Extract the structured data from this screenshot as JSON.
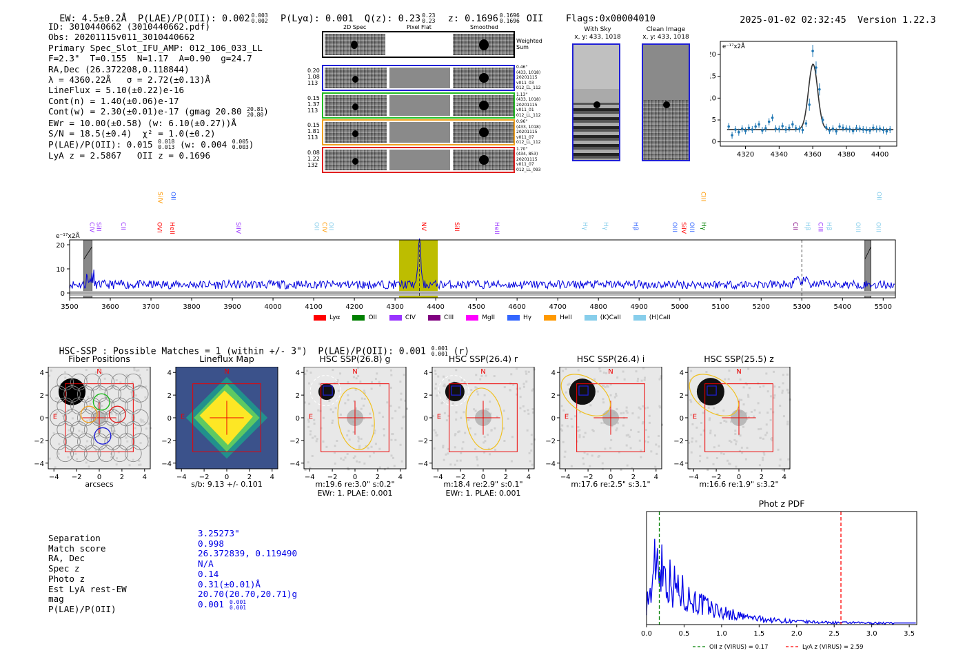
{
  "header": {
    "summary": "EW: 4.5±0.2Å  P(LAE)/P(OII): 0.002",
    "summary_sup": "0.003",
    "summary_sub": "0.002",
    "plya": "P(Lyα): 0.001",
    "qz": "Q(z): 0.23",
    "qz_sup": "0.23",
    "qz_sub": "0.23",
    "z": "z: 0.1696",
    "z_sup": "0.1696",
    "z_sub": "0.1696",
    "z_line": "OII",
    "flags": "Flags:0x00004010",
    "timestamp": "2025-01-02 02:32:45",
    "version": "Version 1.22.3"
  },
  "info": {
    "id": "ID: 3010440662 (3010440662.pdf)",
    "obs": "Obs: 20201115v011_3010440662",
    "primary": "Primary Spec_Slot_IFU_AMP: 012_106_033_LL",
    "fiber": "F=2.3\"  T=0.155  N=1.17  A=0.90  g=24.7",
    "radec": "RA,Dec (26.372208,0.118844)",
    "lambda": "λ = 4360.22Å   σ = 2.72(±0.13)Å",
    "lineflux": "LineFlux = 5.10(±0.22)e-16",
    "contn": "Cont(n) = 1.40(±0.06)e-17",
    "contw": "Cont(w) = 2.30(±0.01)e-17 (gmag 20.80",
    "contw_sup": "20.81",
    "contw_sub": "20.80",
    "contw_end": ")",
    "ewr": "EWr = 10.00(±0.58) (w: 6.10(±0.27))Å",
    "sn": "S/N = 18.5(±0.4)  χ² = 1.0(±0.2)",
    "plae": "P(LAE)/P(OII): 0.015",
    "plae_sup": "0.018",
    "plae_sub": "0.013",
    "plae_w": "(w: 0.004",
    "plae_w_sup": "0.005",
    "plae_w_sub": "0.003",
    "plae_end": ")",
    "lyaz": "LyA z = 2.5867   OII z = 0.1696"
  },
  "cutouts": {
    "col_2d": "2D Spec",
    "col_flat": "Pixel Flat",
    "col_smooth": "Smoothed",
    "weighted_sum": "Weighted Sum",
    "rows": [
      {
        "color": "#1f1fd6",
        "v1": "0.20",
        "v2": "1.08",
        "v3": "113",
        "r1": "0.46\"",
        "r2": "(433, 1018)",
        "r3": "20201115",
        "r4": "v011_03",
        "r5": "012_LL_112"
      },
      {
        "color": "#22bb22",
        "v1": "0.15",
        "v2": "1.37",
        "v3": "113",
        "r1": "1.13\"",
        "r2": "(433, 1018)",
        "r3": "20201115",
        "r4": "v011_01",
        "r5": "012_LL_112"
      },
      {
        "color": "#f0a020",
        "v1": "0.15",
        "v2": "1.81",
        "v3": "113",
        "r1": "0.96\"",
        "r2": "(433, 1018)",
        "r3": "20201115",
        "r4": "v011_07",
        "r5": "012_LL_112"
      },
      {
        "color": "#e02020",
        "v1": "0.08",
        "v2": "1.22",
        "v3": "132",
        "r1": "1.70\"",
        "r2": "(434, 853)",
        "r3": "20201115",
        "r4": "v011_07",
        "r5": "012_LL_093"
      }
    ],
    "with_sky": "With Sky",
    "with_sky_xy": "x, y: 433, 1018",
    "clean": "Clean Image",
    "clean_xy": "x, y: 433, 1018"
  },
  "hsc": {
    "summary": "HSC-SSP : Possible Matches = 1 (within +/- 3\")  P(LAE)/P(OII): 0.001",
    "summary_sup": "0.001",
    "summary_sub": "0.001",
    "summary_end": "(r)",
    "panels": [
      {
        "title": "Fiber Positions",
        "caption1": "arcsecs",
        "caption2": ""
      },
      {
        "title": "Lineflux Map",
        "caption1": "s/b: 9.13 +/- 0.101",
        "caption2": ""
      },
      {
        "title": "HSC SSP(26.8) g",
        "caption1": "m:19.6  re:3.0\"  s:0.2\"",
        "caption2": "EWr: 1. PLAE: 0.001"
      },
      {
        "title": "HSC SSP(26.4) r",
        "caption1": "m:18.4  re:2.9\"  s:0.1\"",
        "caption2": "EWr: 1. PLAE: 0.001"
      },
      {
        "title": "HSC SSP(26.4) i",
        "caption1": "m:17.6  re:2.5\"  s:3.1\"",
        "caption2": ""
      },
      {
        "title": "HSC SSP(25.5) z",
        "caption1": "m:16.6  re:1.9\"  s:3.2\"",
        "caption2": ""
      }
    ],
    "compass_n": "N",
    "compass_e": "E"
  },
  "match": {
    "labels": [
      "Separation",
      "Match score",
      "RA, Dec",
      "Spec z",
      "Photo z",
      "Est LyA rest-EW",
      "mag",
      "P(LAE)/P(OII)"
    ],
    "values": [
      "3.25273\"",
      "0.998",
      "26.372839, 0.119490",
      "N/A",
      "0.14",
      "0.31(±0.01)Å",
      "20.70(20.70,20.71)g",
      "0.001"
    ],
    "plae_sup": "0.001",
    "plae_sub": "0.001"
  },
  "colors": {
    "data_blue": "#1f77b4",
    "spec_blue": "#0000dd",
    "lya_red": "#ff0000",
    "oii_green": "#008000",
    "civ": "#9933ff",
    "ciii": "#800080",
    "mgii": "#ff00ff",
    "hgamma": "#3366ff",
    "heii": "#ff9900",
    "kcaii": "#87ceeb",
    "hcaii": "#87ceeb",
    "olive": "#bdbd00",
    "hsc_yellow": "#f0c020"
  },
  "chart_data": [
    {
      "id": "line-fit",
      "type": "scatter",
      "title": "",
      "ylabel": "e⁻¹⁷x2Å",
      "xlim": [
        4305,
        4410
      ],
      "ylim": [
        -1,
        23
      ],
      "xticks": [
        4320,
        4340,
        4360,
        4380,
        4400
      ],
      "yticks": [
        0,
        5,
        10,
        15,
        20
      ],
      "x": [
        4310,
        4312,
        4314,
        4316,
        4318,
        4320,
        4322,
        4324,
        4326,
        4328,
        4330,
        4332,
        4334,
        4336,
        4338,
        4340,
        4342,
        4344,
        4346,
        4348,
        4350,
        4352,
        4354,
        4356,
        4358,
        4360,
        4362,
        4364,
        4366,
        4368,
        4370,
        4372,
        4374,
        4376,
        4378,
        4380,
        4382,
        4384,
        4386,
        4388,
        4390,
        4392,
        4394,
        4396,
        4398,
        4400,
        4402,
        4404,
        4406
      ],
      "y": [
        3.5,
        1.5,
        2.8,
        2.2,
        3.0,
        2.5,
        3.2,
        2.8,
        3.5,
        4.0,
        2.6,
        3.1,
        4.6,
        5.5,
        3.0,
        2.9,
        3.6,
        2.8,
        3.2,
        4.0,
        3.1,
        2.9,
        2.7,
        4.2,
        8.5,
        20.8,
        17.0,
        12.0,
        5.0,
        3.3,
        2.6,
        3.0,
        2.4,
        3.5,
        3.2,
        3.0,
        2.9,
        2.5,
        3.1,
        3.0,
        2.8,
        2.7,
        2.6,
        3.2,
        2.9,
        3.0,
        2.7,
        2.4,
        2.8
      ],
      "fit": {
        "type": "gaussian",
        "mu": 4360.2,
        "sigma": 2.72,
        "amplitude": 15.0,
        "baseline": 2.8
      }
    },
    {
      "id": "full-spectrum",
      "type": "line",
      "ylabel": "e⁻¹⁷x2Å",
      "xlim": [
        3500,
        5530
      ],
      "ylim": [
        -2,
        22
      ],
      "xticks": [
        3500,
        3600,
        3700,
        3800,
        3900,
        4000,
        4100,
        4200,
        4300,
        4400,
        4500,
        4600,
        4700,
        4800,
        4900,
        5000,
        5100,
        5200,
        5300,
        5400,
        5500
      ],
      "yticks": [
        0,
        10,
        20
      ],
      "series": [
        {
          "name": "spectrum",
          "baseline": 3.5,
          "noise": 1.8,
          "peak_x": 4360,
          "peak_y": 20
        }
      ],
      "highlight_band": [
        4310,
        4405
      ],
      "masked_bands": [
        [
          3535,
          3555
        ],
        [
          5455,
          5470
        ]
      ],
      "dashed_markers": [
        4360,
        5300
      ],
      "line_labels": [
        {
          "label": "CIV",
          "x": 3545,
          "color": "#9933ff",
          "row": "low"
        },
        {
          "label": "SiII",
          "x": 3562,
          "color": "#9933ff",
          "row": "low"
        },
        {
          "label": "CII",
          "x": 3622,
          "color": "#9933ff",
          "row": "low"
        },
        {
          "label": "SiIV",
          "x": 3713,
          "color": "#ff9900",
          "row": "high"
        },
        {
          "label": "OVI",
          "x": 3711,
          "color": "#ff0000",
          "row": "low"
        },
        {
          "label": "OII",
          "x": 3745,
          "color": "#3366ff",
          "row": "high"
        },
        {
          "label": "HeII",
          "x": 3742,
          "color": "#ff0000",
          "row": "low"
        },
        {
          "label": "SiIV",
          "x": 3905,
          "color": "#9933ff",
          "row": "low"
        },
        {
          "label": "OII",
          "x": 4097,
          "color": "#87ceeb",
          "row": "low"
        },
        {
          "label": "CIV",
          "x": 4117,
          "color": "#ff9900",
          "row": "low"
        },
        {
          "label": "OII",
          "x": 4133,
          "color": "#87ceeb",
          "row": "low"
        },
        {
          "label": "NV",
          "x": 4361,
          "color": "#ff0000",
          "row": "low"
        },
        {
          "label": "SiII",
          "x": 4442,
          "color": "#ff0000",
          "row": "low"
        },
        {
          "label": "HeII",
          "x": 4540,
          "color": "#9933ff",
          "row": "low"
        },
        {
          "label": "Hγ",
          "x": 4757,
          "color": "#87ceeb",
          "row": "low"
        },
        {
          "label": "Hγ",
          "x": 4808,
          "color": "#87ceeb",
          "row": "low"
        },
        {
          "label": "Hβ",
          "x": 4882,
          "color": "#3366ff",
          "row": "low"
        },
        {
          "label": "OIII",
          "x": 4978,
          "color": "#3366ff",
          "row": "low"
        },
        {
          "label": "SiIV",
          "x": 5000,
          "color": "#ff0000",
          "row": "low"
        },
        {
          "label": "OIII",
          "x": 5020,
          "color": "#3366ff",
          "row": "low"
        },
        {
          "label": "CIII",
          "x": 5048,
          "color": "#ff9900",
          "row": "high"
        },
        {
          "label": "Hγ",
          "x": 5049,
          "color": "#008000",
          "row": "low"
        },
        {
          "label": "CII",
          "x": 5274,
          "color": "#800080",
          "row": "low"
        },
        {
          "label": "Hβ",
          "x": 5305,
          "color": "#87ceeb",
          "row": "low"
        },
        {
          "label": "CIII",
          "x": 5336,
          "color": "#9933ff",
          "row": "low"
        },
        {
          "label": "Hβ",
          "x": 5357,
          "color": "#87ceeb",
          "row": "low"
        },
        {
          "label": "OIII",
          "x": 5428,
          "color": "#87ceeb",
          "row": "low"
        },
        {
          "label": "OII",
          "x": 5480,
          "color": "#87ceeb",
          "row": "high"
        },
        {
          "label": "OIII",
          "x": 5478,
          "color": "#87ceeb",
          "row": "low"
        }
      ],
      "legend": [
        {
          "label": "Lyα",
          "color": "#ff0000"
        },
        {
          "label": "OII",
          "color": "#008000"
        },
        {
          "label": "CIV",
          "color": "#9933ff"
        },
        {
          "label": "CIII",
          "color": "#800080"
        },
        {
          "label": "MgII",
          "color": "#ff00ff"
        },
        {
          "label": "Hγ",
          "color": "#3366ff"
        },
        {
          "label": "HeII",
          "color": "#ff9900"
        },
        {
          "label": "(K)CaII",
          "color": "#87ceeb"
        },
        {
          "label": "(H)CaII",
          "color": "#87ceeb"
        }
      ]
    },
    {
      "id": "photz-pdf",
      "type": "line",
      "title": "Phot z PDF",
      "xlim": [
        0,
        3.6
      ],
      "ylim": [
        0,
        1.05
      ],
      "xticks": [
        0.0,
        0.5,
        1.0,
        1.5,
        2.0,
        2.5,
        3.0,
        3.5
      ],
      "vlines": [
        {
          "x": 0.17,
          "label": "OII z (VIRUS) = 0.17",
          "color": "#008000"
        },
        {
          "x": 2.59,
          "label": "LyA z (VIRUS) = 2.59",
          "color": "#ff0000"
        }
      ]
    }
  ]
}
